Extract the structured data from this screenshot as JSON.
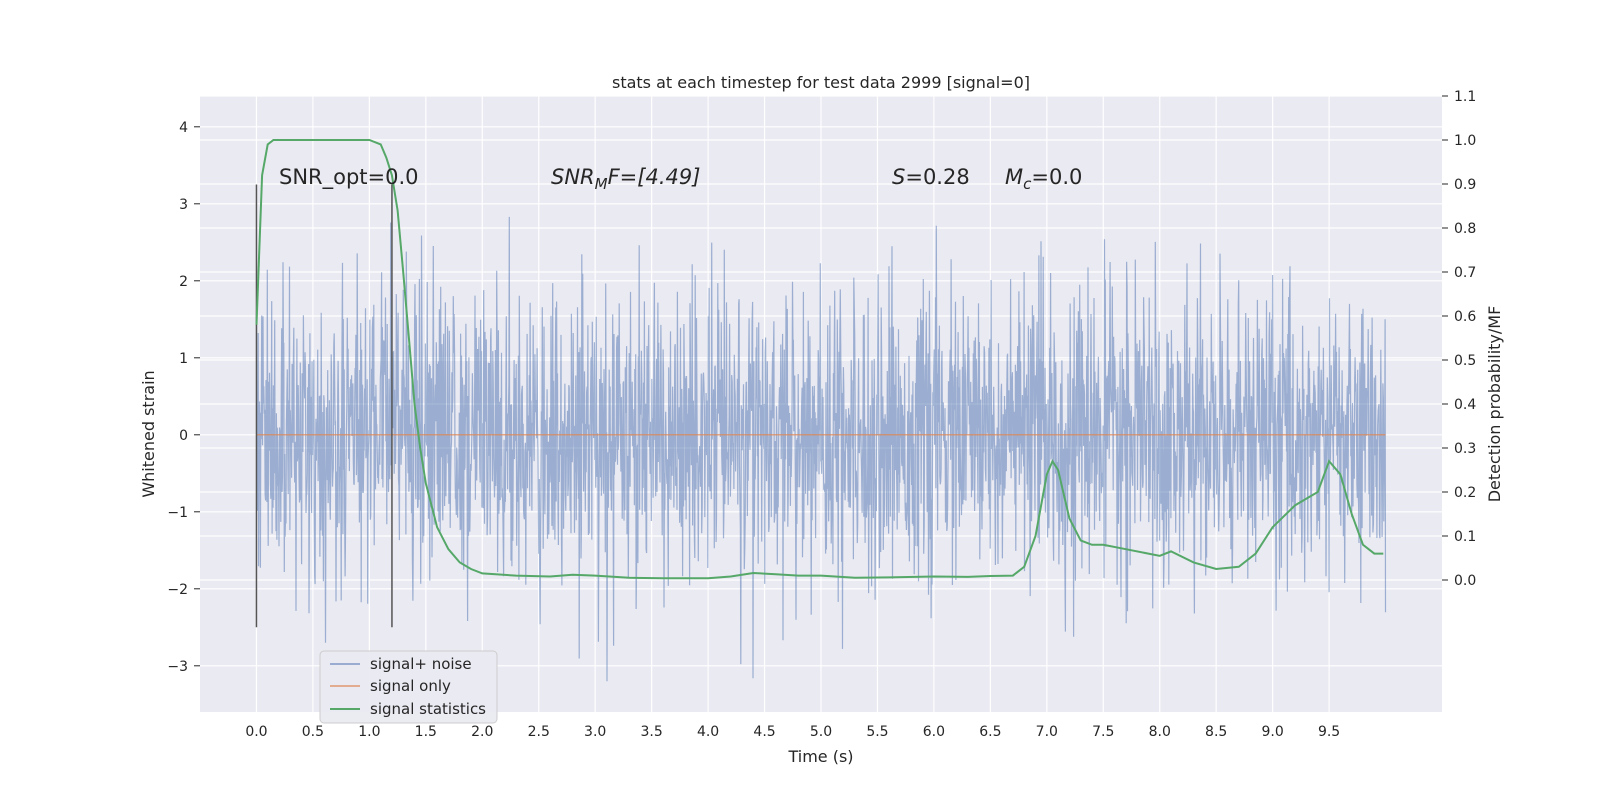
{
  "chart_data": {
    "type": "line",
    "title": "stats at each timestep for test data 2999 [signal=0]",
    "xlabel": "Time (s)",
    "ylabel_left": "Whitened strain",
    "ylabel_right": "Detection probability/MF",
    "xlim": [
      -0.5,
      10.5
    ],
    "ylim_left": [
      -3.6,
      4.4
    ],
    "ylim_right": [
      -0.3,
      1.1
    ],
    "x_ticks": [
      "0.0",
      "0.5",
      "1.0",
      "1.5",
      "2.0",
      "2.5",
      "3.0",
      "3.5",
      "4.0",
      "4.5",
      "5.0",
      "5.5",
      "6.0",
      "6.5",
      "7.0",
      "7.5",
      "8.0",
      "8.5",
      "9.0",
      "9.5"
    ],
    "y_left_ticks": [
      "4",
      "3",
      "2",
      "1",
      "0",
      "−1",
      "−2",
      "−3"
    ],
    "y_right_ticks": [
      "1.1",
      "1.0",
      "0.9",
      "0.8",
      "0.7",
      "0.6",
      "0.5",
      "0.4",
      "0.3",
      "0.2",
      "0.1",
      "0.0"
    ],
    "grid": true,
    "colors": {
      "axes_bg": "#eaeaf2",
      "grid": "#ffffff",
      "noise": "#4c72b0",
      "signal_only": "#dd8452",
      "statistics": "#55a868",
      "marker": "#555555"
    },
    "annotations": {
      "snr_opt": "SNR_opt=0.0",
      "snr_mf_label": "SNR",
      "snr_mf_sub": "M",
      "snr_mf_rest": "F=[4.49]",
      "s_label": "S",
      "s_value": "=0.28",
      "mc_label": "M",
      "mc_sub": "c",
      "mc_value": "=0.0"
    },
    "markers_x": [
      0.0,
      1.2
    ],
    "legend": {
      "placement": "lower-left",
      "entries": [
        "signal+ noise",
        "signal only",
        "signal statistics"
      ]
    },
    "series": [
      {
        "name": "signal+ noise",
        "kind": "noise",
        "x_range": [
          0.0,
          10.0
        ],
        "std": 0.9
      },
      {
        "name": "signal only",
        "x": [
          0.0,
          10.0
        ],
        "y": [
          0.0,
          0.0
        ]
      },
      {
        "name": "signal statistics",
        "axis": "right",
        "x": [
          0.0,
          0.05,
          0.1,
          0.15,
          0.3,
          0.5,
          0.7,
          0.9,
          1.0,
          1.1,
          1.15,
          1.2,
          1.25,
          1.3,
          1.35,
          1.4,
          1.45,
          1.5,
          1.6,
          1.7,
          1.8,
          1.9,
          2.0,
          2.3,
          2.6,
          2.8,
          3.0,
          3.3,
          3.6,
          4.0,
          4.2,
          4.4,
          4.6,
          4.8,
          5.0,
          5.3,
          5.6,
          6.0,
          6.3,
          6.5,
          6.7,
          6.8,
          6.9,
          7.0,
          7.05,
          7.1,
          7.2,
          7.3,
          7.4,
          7.5,
          7.7,
          7.9,
          8.0,
          8.1,
          8.3,
          8.5,
          8.7,
          8.85,
          9.0,
          9.2,
          9.4,
          9.5,
          9.6,
          9.7,
          9.8,
          9.9,
          9.98
        ],
        "y": [
          0.58,
          0.92,
          0.99,
          1.0,
          1.0,
          1.0,
          1.0,
          1.0,
          1.0,
          0.99,
          0.96,
          0.92,
          0.84,
          0.7,
          0.55,
          0.4,
          0.3,
          0.22,
          0.12,
          0.07,
          0.04,
          0.025,
          0.015,
          0.01,
          0.008,
          0.012,
          0.01,
          0.005,
          0.004,
          0.004,
          0.008,
          0.016,
          0.013,
          0.01,
          0.01,
          0.005,
          0.006,
          0.008,
          0.007,
          0.009,
          0.01,
          0.03,
          0.1,
          0.24,
          0.27,
          0.25,
          0.14,
          0.09,
          0.08,
          0.08,
          0.07,
          0.06,
          0.055,
          0.065,
          0.04,
          0.025,
          0.03,
          0.06,
          0.12,
          0.17,
          0.2,
          0.27,
          0.24,
          0.15,
          0.08,
          0.06,
          0.06
        ]
      }
    ]
  }
}
